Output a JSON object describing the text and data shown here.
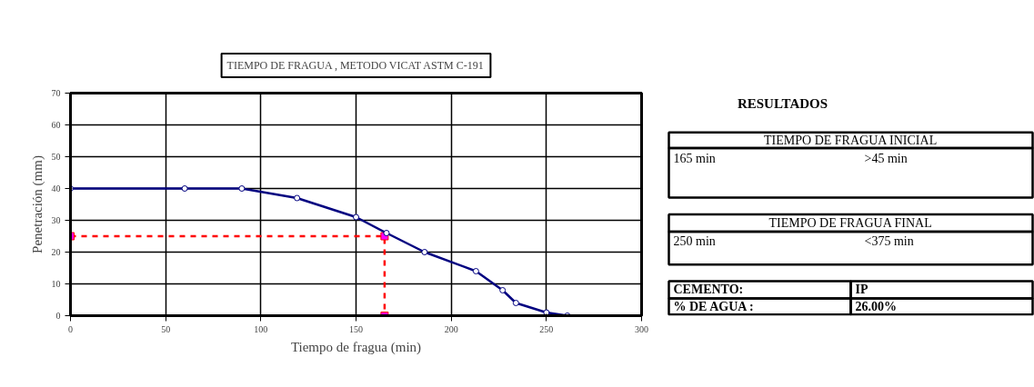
{
  "chart_data": [
    {
      "type": "line",
      "title": "TIEMPO DE FRAGUA , METODO VICAT ASTM C-191",
      "xlabel": "Tiempo de fragua (min)",
      "ylabel": "Penetración (mm)",
      "xlim": [
        0,
        300
      ],
      "ylim": [
        0,
        70
      ],
      "xticks": [
        0,
        50,
        100,
        150,
        200,
        250,
        300
      ],
      "yticks": [
        0,
        10,
        20,
        30,
        40,
        50,
        60,
        70
      ],
      "grid": true,
      "marker": "circle",
      "series": [
        {
          "color": "#000080",
          "x": [
            0,
            60,
            90,
            119,
            150,
            166,
            186,
            213,
            227,
            234,
            250,
            261
          ],
          "values": [
            40,
            40,
            40,
            37,
            31,
            26,
            20,
            14,
            8,
            4,
            1,
            0
          ]
        },
        {
          "color": "#ff0000",
          "line_style": "dashed",
          "marker": "square",
          "x": [
            0,
            165,
            165
          ],
          "values": [
            25,
            25,
            0
          ]
        }
      ]
    },
    {
      "type": "other",
      "title": "RESULTADOS",
      "annotations": [
        "TIEMPO DE FRAGUA INICIAL",
        "165 min",
        ">45 min",
        "TIEMPO DE FRAGUA FINAL",
        "250 min",
        "<375 min",
        "CEMENTO:",
        "IP",
        "% DE AGUA :",
        "26.00%"
      ]
    }
  ]
}
